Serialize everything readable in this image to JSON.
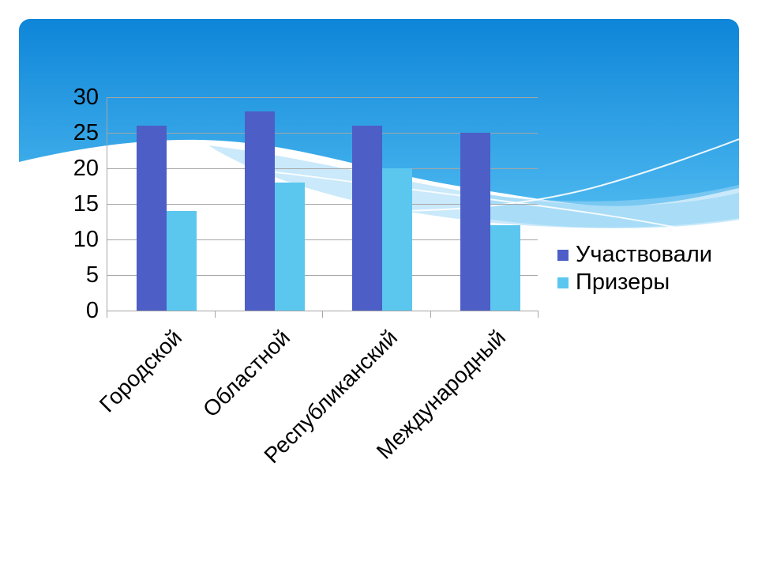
{
  "chart_data": {
    "type": "bar",
    "bar_orientation": "vertical",
    "categories": [
      "Городской",
      "Областной",
      "Республиканский",
      "Международный"
    ],
    "series": [
      {
        "name": "Участвовали",
        "color": "#4d5ec6",
        "values": [
          26,
          28,
          26,
          25
        ]
      },
      {
        "name": "Призеры",
        "color": "#5bc7ef",
        "values": [
          14,
          18,
          20,
          12
        ]
      }
    ],
    "title": "",
    "xlabel": "",
    "ylabel": "",
    "ylim": [
      0,
      30
    ],
    "yticks": [
      0,
      5,
      10,
      15,
      20,
      25,
      30
    ],
    "grid": true,
    "legend_position": "right",
    "category_label_rotation_deg": -45
  },
  "style": {
    "gridline_color": "#a6a6a6",
    "axis_color": "#a6a6a6",
    "text_color": "#000000",
    "sky_gradient_top": "#0e85d8",
    "sky_gradient_bottom": "#4ab6ee",
    "wave_overlay_color": "#9ed7f5",
    "wave_overlay_color_2": "#7ecdf3",
    "wave_line_color": "#ffffff",
    "slide_background": "#ffffff"
  }
}
